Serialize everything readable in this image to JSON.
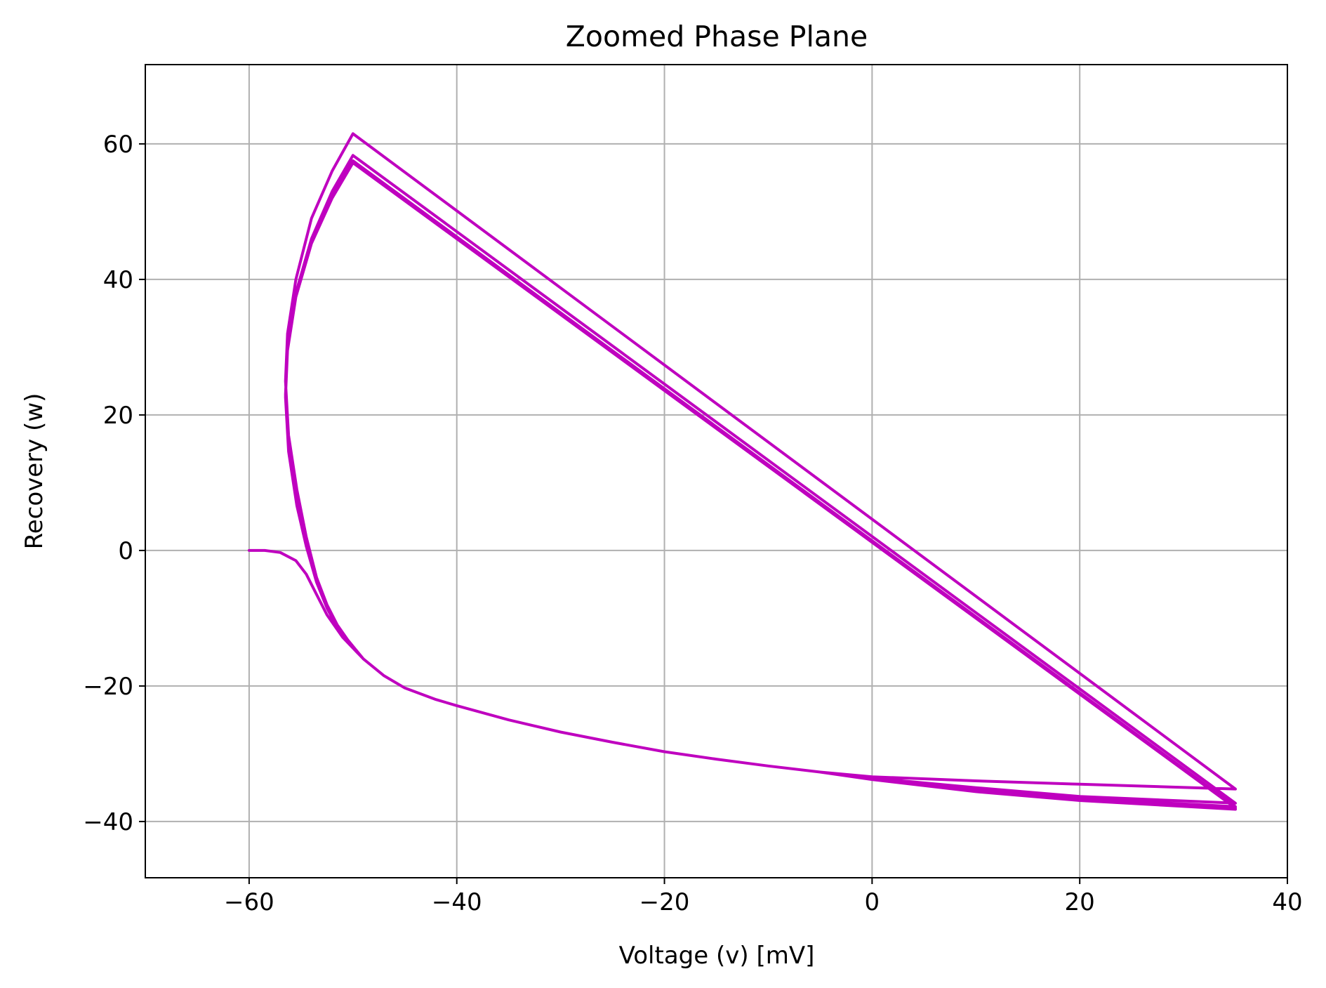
{
  "chart_data": {
    "type": "line",
    "title": "Zoomed Phase Plane",
    "xlabel": "Voltage (v) [mV]",
    "ylabel": "Recovery (w)",
    "xlim": [
      -70,
      40
    ],
    "ylim": [
      -48.3,
      71.7
    ],
    "xticks": [
      -60,
      -40,
      -20,
      0,
      20,
      40
    ],
    "yticks": [
      -40,
      -20,
      0,
      20,
      40,
      60
    ],
    "xtick_labels": [
      "−60",
      "−40",
      "−20",
      "0",
      "20",
      "40"
    ],
    "ytick_labels": [
      "−40",
      "−20",
      "0",
      "20",
      "40",
      "60"
    ],
    "grid": true,
    "series": [
      {
        "color": "#bf00bf",
        "points": [
          [
            -60,
            0
          ],
          [
            -58.5,
            0
          ],
          [
            -57,
            -0.3
          ],
          [
            -55.5,
            -1.5
          ],
          [
            -54.5,
            -3.5
          ],
          [
            -53.5,
            -6.5
          ],
          [
            -52.5,
            -9.5
          ],
          [
            -51,
            -12.8
          ],
          [
            -49,
            -16
          ],
          [
            -47,
            -18.5
          ],
          [
            -45,
            -20.3
          ],
          [
            -42,
            -22
          ],
          [
            -40,
            -22.9
          ],
          [
            -35,
            -25
          ],
          [
            -30,
            -26.8
          ],
          [
            -25,
            -28.3
          ],
          [
            -20,
            -29.7
          ],
          [
            -15,
            -30.8
          ],
          [
            -10,
            -31.8
          ],
          [
            -5,
            -32.7
          ],
          [
            0,
            -33.4
          ],
          [
            10,
            -34
          ],
          [
            20,
            -34.5
          ],
          [
            35,
            -35.2
          ],
          [
            -50,
            61.5
          ],
          [
            -52,
            56
          ],
          [
            -54,
            49
          ],
          [
            -55.5,
            40
          ],
          [
            -56.3,
            32
          ],
          [
            -56.5,
            25
          ],
          [
            -56.2,
            17
          ],
          [
            -55.4,
            9
          ],
          [
            -54.5,
            2
          ],
          [
            -53.5,
            -4
          ],
          [
            -52.5,
            -8
          ],
          [
            -51.5,
            -11
          ],
          [
            -50.5,
            -13.2
          ],
          [
            -49,
            -16
          ],
          [
            -47,
            -18.5
          ],
          [
            -45,
            -20.3
          ],
          [
            -42,
            -22
          ],
          [
            -40,
            -22.9
          ],
          [
            -35,
            -25
          ],
          [
            -30,
            -26.8
          ],
          [
            -25,
            -28.3
          ],
          [
            -20,
            -29.7
          ],
          [
            -15,
            -30.8
          ],
          [
            -10,
            -31.8
          ],
          [
            -5,
            -32.7
          ],
          [
            0,
            -33.6
          ],
          [
            10,
            -35
          ],
          [
            20,
            -36.3
          ],
          [
            35,
            -37.3
          ],
          [
            -50,
            58.3
          ],
          [
            -52,
            53
          ],
          [
            -54,
            46
          ],
          [
            -55.5,
            38
          ],
          [
            -56.3,
            30
          ],
          [
            -56.5,
            23
          ],
          [
            -56.2,
            15
          ],
          [
            -55.4,
            7
          ],
          [
            -54.5,
            1
          ],
          [
            -53.5,
            -4.5
          ],
          [
            -52.5,
            -8.3
          ],
          [
            -51.5,
            -11.2
          ],
          [
            -50.5,
            -13.4
          ],
          [
            -49,
            -16
          ],
          [
            -47,
            -18.5
          ],
          [
            -45,
            -20.3
          ],
          [
            -42,
            -22
          ],
          [
            -40,
            -22.9
          ],
          [
            -35,
            -25
          ],
          [
            -30,
            -26.8
          ],
          [
            -25,
            -28.3
          ],
          [
            -20,
            -29.7
          ],
          [
            -15,
            -30.8
          ],
          [
            -10,
            -31.8
          ],
          [
            -5,
            -32.7
          ],
          [
            0,
            -33.7
          ],
          [
            10,
            -35.3
          ],
          [
            20,
            -36.6
          ],
          [
            35,
            -37.8
          ],
          [
            -50,
            57.5
          ],
          [
            -52,
            52.3
          ],
          [
            -54,
            45.5
          ],
          [
            -55.5,
            37.6
          ],
          [
            -56.3,
            29.7
          ],
          [
            -56.5,
            22.8
          ],
          [
            -56.2,
            14.8
          ],
          [
            -55.4,
            6.8
          ],
          [
            -54.5,
            0.8
          ],
          [
            -53.5,
            -4.6
          ],
          [
            -52.5,
            -8.4
          ],
          [
            -51.5,
            -11.3
          ],
          [
            -50.5,
            -13.5
          ],
          [
            -49,
            -16
          ],
          [
            -47,
            -18.5
          ],
          [
            -45,
            -20.3
          ],
          [
            -42,
            -22
          ],
          [
            -40,
            -22.9
          ],
          [
            -35,
            -25
          ],
          [
            -30,
            -26.8
          ],
          [
            -25,
            -28.3
          ],
          [
            -20,
            -29.7
          ],
          [
            -15,
            -30.8
          ],
          [
            -10,
            -31.8
          ],
          [
            -5,
            -32.7
          ],
          [
            0,
            -33.8
          ],
          [
            10,
            -35.5
          ],
          [
            20,
            -36.8
          ],
          [
            35,
            -38
          ],
          [
            -50,
            57.2
          ],
          [
            -52,
            52
          ],
          [
            -54,
            45.3
          ],
          [
            -55.5,
            37.4
          ],
          [
            -56.3,
            29.5
          ],
          [
            -56.5,
            22.6
          ],
          [
            -56.2,
            14.6
          ],
          [
            -55.4,
            6.6
          ],
          [
            -54.5,
            0.6
          ],
          [
            -53.5,
            -4.7
          ],
          [
            -52.5,
            -8.5
          ],
          [
            -51.5,
            -11.4
          ],
          [
            -50.5,
            -13.6
          ],
          [
            -49,
            -16
          ],
          [
            -47,
            -18.5
          ],
          [
            -45,
            -20.3
          ],
          [
            -42,
            -22
          ],
          [
            -40,
            -22.9
          ],
          [
            -35,
            -25
          ],
          [
            -30,
            -26.8
          ],
          [
            -25,
            -28.3
          ],
          [
            -20,
            -29.7
          ],
          [
            -15,
            -30.8
          ],
          [
            -10,
            -31.8
          ],
          [
            -5,
            -32.7
          ],
          [
            0,
            -33.8
          ],
          [
            10,
            -35.6
          ],
          [
            20,
            -36.9
          ],
          [
            35,
            -38.2
          ]
        ]
      }
    ]
  }
}
